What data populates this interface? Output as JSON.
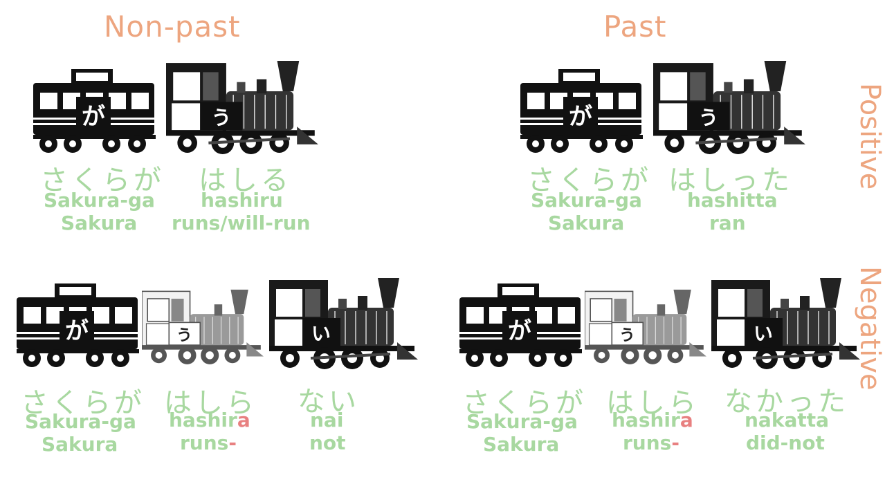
{
  "headings": {
    "nonpast": "Non-past",
    "past": "Past"
  },
  "side_labels": {
    "positive": "Positive",
    "negative": "Negative"
  },
  "car_kana": "が",
  "engine_u": "う",
  "engine_i": "い",
  "panels": {
    "nonpast_positive": {
      "subject": {
        "kana": "さくらが",
        "romaji": "Sakura-ga",
        "gloss": "Sakura"
      },
      "verb": {
        "kana": "はしる",
        "romaji": "hashiru",
        "gloss": "runs/will-run"
      }
    },
    "past_positive": {
      "subject": {
        "kana": "さくらが",
        "romaji": "Sakura-ga",
        "gloss": "Sakura"
      },
      "verb": {
        "kana": "はしった",
        "romaji": "hashitta",
        "gloss": "ran"
      }
    },
    "nonpast_negative": {
      "subject": {
        "kana": "さくらが",
        "romaji": "Sakura-ga",
        "gloss": "Sakura"
      },
      "verb": {
        "kana": "はしら",
        "romaji_stem": "hashir",
        "romaji_highlight": "a",
        "gloss_stem": "runs",
        "gloss_highlight": "-"
      },
      "neg": {
        "kana": "ない",
        "romaji": "nai",
        "gloss": "not"
      }
    },
    "past_negative": {
      "subject": {
        "kana": "さくらが",
        "romaji": "Sakura-ga",
        "gloss": "Sakura"
      },
      "verb": {
        "kana": "はしら",
        "romaji_stem": "hashir",
        "romaji_highlight": "a",
        "gloss_stem": "runs",
        "gloss_highlight": "-"
      },
      "neg": {
        "kana": "なかった",
        "romaji": "nakatta",
        "gloss": "did-not"
      }
    }
  }
}
